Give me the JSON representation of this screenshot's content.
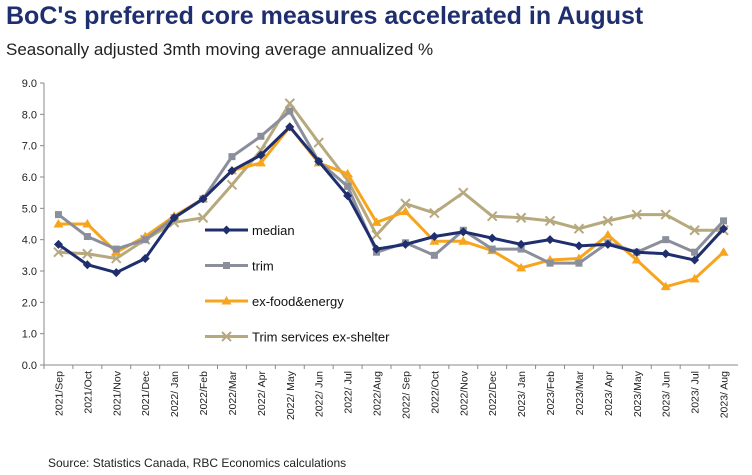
{
  "chart_data": {
    "type": "line",
    "title": "BoC's preferred core measures accelerated in August",
    "subtitle": "Seasonally adjusted 3mth moving average annualized %",
    "source": "Source: Statistics Canada, RBC Economics calculations",
    "categories": [
      "2021/Sep",
      "2021/Oct",
      "2021/Nov",
      "2021/Dec",
      "2022/ Jan",
      "2022/Feb",
      "2022/Mar",
      "2022/ Apr",
      "2022/ May",
      "2022/ Jun",
      "2022/ Jul",
      "2022/Aug",
      "2022/ Sep",
      "2022/Oct",
      "2022/Nov",
      "2022/Dec",
      "2023/ Jan",
      "2023/Feb",
      "2023/Mar",
      "2023/ Apr",
      "2023/May",
      "2023/ Jun",
      "2023/ Jul",
      "2023/ Aug"
    ],
    "ylim": [
      0,
      9
    ],
    "yticks": [
      "0.0",
      "1.0",
      "2.0",
      "3.0",
      "4.0",
      "5.0",
      "6.0",
      "7.0",
      "8.0",
      "9.0"
    ],
    "grid": false,
    "legend_placement": "inside-center-left",
    "series": [
      {
        "name": "median",
        "color": "#1f2e6e",
        "marker": "diamond",
        "values": [
          3.85,
          3.2,
          2.95,
          3.4,
          4.7,
          5.3,
          6.2,
          6.7,
          7.6,
          6.5,
          5.4,
          3.7,
          3.85,
          4.1,
          4.25,
          4.05,
          3.85,
          4.0,
          3.8,
          3.85,
          3.6,
          3.55,
          3.35,
          4.35
        ]
      },
      {
        "name": "trim",
        "color": "#8a8f9b",
        "marker": "square",
        "values": [
          4.8,
          4.1,
          3.7,
          4.0,
          4.7,
          5.3,
          6.65,
          7.3,
          8.1,
          6.5,
          5.7,
          3.6,
          3.9,
          3.5,
          4.3,
          3.7,
          3.7,
          3.25,
          3.25,
          3.9,
          3.6,
          4.0,
          3.6,
          4.6
        ]
      },
      {
        "name": "ex-food&energy",
        "color": "#f7a51c",
        "marker": "triangle",
        "values": [
          4.5,
          4.5,
          3.6,
          4.1,
          4.75,
          5.3,
          6.2,
          6.45,
          7.6,
          6.45,
          6.1,
          4.55,
          4.9,
          3.95,
          3.95,
          3.65,
          3.1,
          3.35,
          3.4,
          4.15,
          3.35,
          2.5,
          2.75,
          3.6
        ]
      },
      {
        "name": "Trim services ex-shelter",
        "color": "#b7a97e",
        "marker": "x",
        "values": [
          3.6,
          3.55,
          3.4,
          4.0,
          4.55,
          4.7,
          5.75,
          6.85,
          8.35,
          7.1,
          5.9,
          4.15,
          5.15,
          4.85,
          5.5,
          4.75,
          4.7,
          4.6,
          4.35,
          4.6,
          4.8,
          4.8,
          4.3,
          4.3
        ]
      }
    ]
  }
}
